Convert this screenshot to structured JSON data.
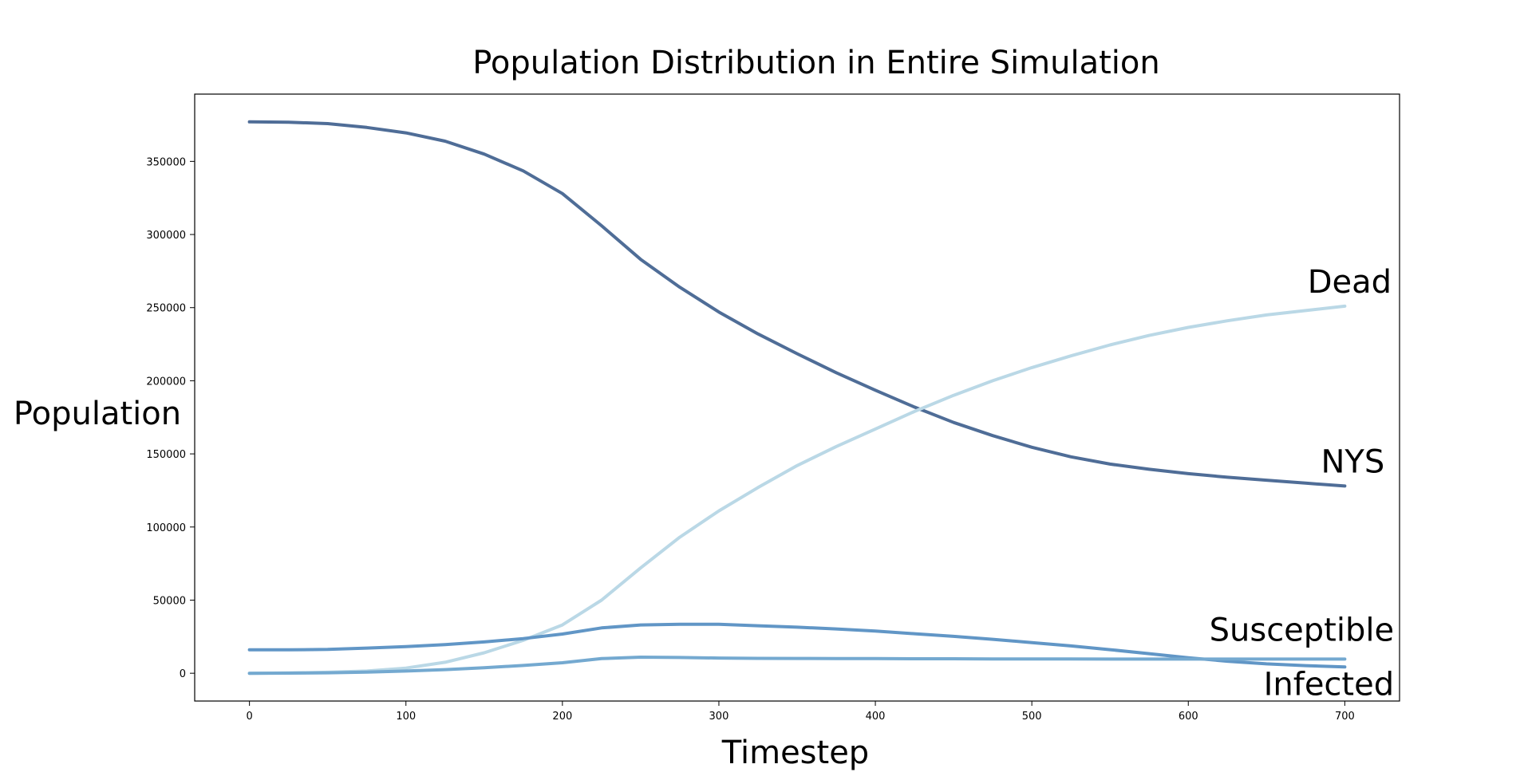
{
  "chart_data": {
    "type": "line",
    "title": "Population Distribution in Entire Simulation",
    "xlabel": "Timestep",
    "ylabel": "Population",
    "xlim": [
      -35,
      735
    ],
    "ylim": [
      -19000,
      396000
    ],
    "xticks": [
      0,
      100,
      200,
      300,
      400,
      500,
      600,
      700
    ],
    "yticks": [
      0,
      50000,
      100000,
      150000,
      200000,
      250000,
      300000,
      350000
    ],
    "grid": false,
    "legend": "none",
    "series": [
      {
        "name": "NYS",
        "color": "#4f6d97",
        "x": [
          0,
          25,
          50,
          75,
          100,
          125,
          150,
          175,
          200,
          225,
          250,
          275,
          300,
          325,
          350,
          375,
          400,
          425,
          450,
          475,
          500,
          525,
          550,
          575,
          600,
          625,
          650,
          675,
          700
        ],
        "values": [
          377000,
          376800,
          375800,
          373200,
          369500,
          363800,
          355000,
          343500,
          328000,
          306000,
          283000,
          264000,
          247000,
          232000,
          218500,
          205500,
          193500,
          182000,
          171500,
          162500,
          154500,
          148000,
          143000,
          139500,
          136500,
          134000,
          132000,
          130000,
          128000
        ]
      },
      {
        "name": "Dead",
        "color": "#bad8e6",
        "x": [
          0,
          25,
          50,
          75,
          100,
          125,
          150,
          175,
          200,
          225,
          250,
          275,
          300,
          325,
          350,
          375,
          400,
          425,
          450,
          475,
          500,
          525,
          550,
          575,
          600,
          625,
          650,
          675,
          700
        ],
        "values": [
          0,
          200,
          700,
          1500,
          3500,
          7500,
          14000,
          22500,
          33000,
          50000,
          72000,
          93000,
          111000,
          127000,
          142000,
          155000,
          167000,
          179000,
          190000,
          200000,
          209000,
          217000,
          224500,
          231000,
          236500,
          241000,
          245000,
          248000,
          251000
        ]
      },
      {
        "name": "Susceptible",
        "color": "#6196c6",
        "x": [
          0,
          25,
          50,
          75,
          100,
          125,
          150,
          175,
          200,
          225,
          250,
          275,
          300,
          325,
          350,
          375,
          400,
          425,
          450,
          475,
          500,
          525,
          550,
          575,
          600,
          625,
          650,
          675,
          700
        ],
        "values": [
          16000,
          16000,
          16300,
          17200,
          18200,
          19600,
          21400,
          23700,
          26800,
          31000,
          33000,
          33500,
          33500,
          32500,
          31500,
          30300,
          28800,
          27000,
          25200,
          23200,
          21000,
          18700,
          16100,
          13400,
          10600,
          8200,
          6400,
          5200,
          4300
        ]
      },
      {
        "name": "Infected",
        "color": "#74a9d0",
        "x": [
          0,
          25,
          50,
          75,
          100,
          125,
          150,
          175,
          200,
          225,
          250,
          275,
          300,
          325,
          350,
          375,
          400,
          425,
          450,
          475,
          500,
          525,
          550,
          575,
          600,
          625,
          650,
          675,
          700
        ],
        "values": [
          0,
          100,
          300,
          800,
          1500,
          2500,
          3800,
          5300,
          7200,
          10000,
          11000,
          10800,
          10400,
          10200,
          10100,
          10000,
          10000,
          9900,
          9900,
          9800,
          9800,
          9800,
          9700,
          9700,
          9700,
          9700,
          9700,
          9700,
          9700
        ]
      }
    ]
  }
}
